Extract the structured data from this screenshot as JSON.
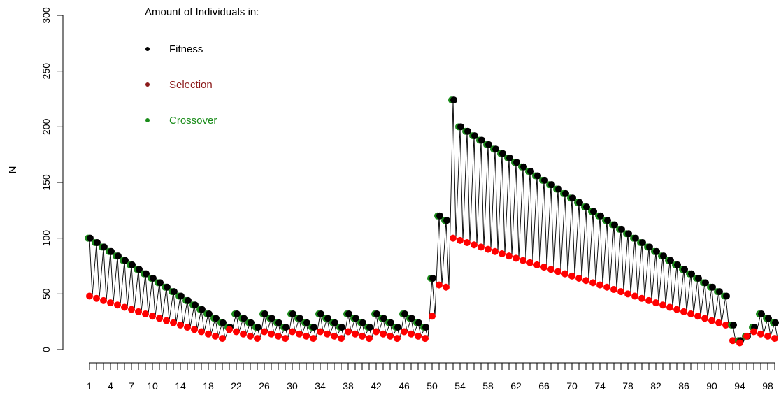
{
  "chart_data": {
    "type": "scatter",
    "title": "",
    "xlabel": "",
    "ylabel": "N",
    "ylim": [
      0,
      300
    ],
    "xlim": [
      1,
      99
    ],
    "y_ticks": [
      0,
      50,
      100,
      150,
      200,
      250,
      300
    ],
    "x_tick_labels": [
      1,
      4,
      7,
      10,
      14,
      18,
      22,
      26,
      30,
      34,
      38,
      42,
      46,
      50,
      54,
      58,
      62,
      66,
      70,
      74,
      78,
      82,
      86,
      90,
      94,
      98
    ],
    "legend": {
      "title": "Amount of Individuals in:",
      "placement": "top-left",
      "entries": [
        {
          "name": "Fitness",
          "color": "#000000"
        },
        {
          "name": "Selection",
          "color": "#8b1a1a"
        },
        {
          "name": "Crossover",
          "color": "#1a8c1a"
        }
      ]
    },
    "x": [
      1,
      2,
      3,
      4,
      5,
      6,
      7,
      8,
      9,
      10,
      11,
      12,
      13,
      14,
      15,
      16,
      17,
      18,
      19,
      20,
      21,
      22,
      23,
      24,
      25,
      26,
      27,
      28,
      29,
      30,
      31,
      32,
      33,
      34,
      35,
      36,
      37,
      38,
      39,
      40,
      41,
      42,
      43,
      44,
      45,
      46,
      47,
      48,
      49,
      50,
      51,
      52,
      53,
      54,
      55,
      56,
      57,
      58,
      59,
      60,
      61,
      62,
      63,
      64,
      65,
      66,
      67,
      68,
      69,
      70,
      71,
      72,
      73,
      74,
      75,
      76,
      77,
      78,
      79,
      80,
      81,
      82,
      83,
      84,
      85,
      86,
      87,
      88,
      89,
      90,
      91,
      92,
      93,
      94,
      95,
      96,
      97,
      98,
      99
    ],
    "series": [
      {
        "name": "Fitness",
        "color": "#000000",
        "values": [
          100,
          96,
          92,
          88,
          84,
          80,
          76,
          72,
          68,
          64,
          60,
          56,
          52,
          48,
          44,
          40,
          36,
          32,
          28,
          24,
          20,
          32,
          28,
          24,
          20,
          32,
          28,
          24,
          20,
          32,
          28,
          24,
          20,
          32,
          28,
          24,
          20,
          32,
          28,
          24,
          20,
          32,
          28,
          24,
          20,
          32,
          28,
          24,
          20,
          64,
          120,
          116,
          224,
          200,
          196,
          192,
          188,
          184,
          180,
          176,
          172,
          168,
          164,
          160,
          156,
          152,
          148,
          144,
          140,
          136,
          132,
          128,
          124,
          120,
          116,
          112,
          108,
          104,
          100,
          96,
          92,
          88,
          84,
          80,
          76,
          72,
          68,
          64,
          60,
          56,
          52,
          48,
          22,
          8,
          12,
          20,
          32,
          28,
          24
        ]
      },
      {
        "name": "Selection",
        "color": "#ff0000",
        "values": [
          48,
          46,
          44,
          42,
          40,
          38,
          36,
          34,
          32,
          30,
          28,
          26,
          24,
          22,
          20,
          18,
          16,
          14,
          12,
          10,
          18,
          16,
          14,
          12,
          10,
          16,
          14,
          12,
          10,
          16,
          14,
          12,
          10,
          16,
          14,
          12,
          10,
          16,
          14,
          12,
          10,
          16,
          14,
          12,
          10,
          16,
          14,
          12,
          10,
          30,
          58,
          56,
          100,
          98,
          96,
          94,
          92,
          90,
          88,
          86,
          84,
          82,
          80,
          78,
          76,
          74,
          72,
          70,
          68,
          66,
          64,
          62,
          60,
          58,
          56,
          54,
          52,
          50,
          48,
          46,
          44,
          42,
          40,
          38,
          36,
          34,
          32,
          30,
          28,
          26,
          24,
          22,
          8,
          6,
          12,
          16,
          14,
          12,
          10
        ]
      },
      {
        "name": "Crossover",
        "color": "#1a8c1a",
        "values": [
          100,
          96,
          92,
          88,
          84,
          80,
          76,
          72,
          68,
          64,
          60,
          56,
          52,
          48,
          44,
          40,
          36,
          32,
          28,
          24,
          20,
          32,
          28,
          24,
          20,
          32,
          28,
          24,
          20,
          32,
          28,
          24,
          20,
          32,
          28,
          24,
          20,
          32,
          28,
          24,
          20,
          32,
          28,
          24,
          20,
          32,
          28,
          24,
          20,
          64,
          120,
          116,
          224,
          200,
          196,
          192,
          188,
          184,
          180,
          176,
          172,
          168,
          164,
          160,
          156,
          152,
          148,
          144,
          140,
          136,
          132,
          128,
          124,
          120,
          116,
          112,
          108,
          104,
          100,
          96,
          92,
          88,
          84,
          80,
          76,
          72,
          68,
          64,
          60,
          56,
          52,
          48,
          22,
          8,
          12,
          20,
          32,
          28,
          24
        ]
      }
    ]
  }
}
